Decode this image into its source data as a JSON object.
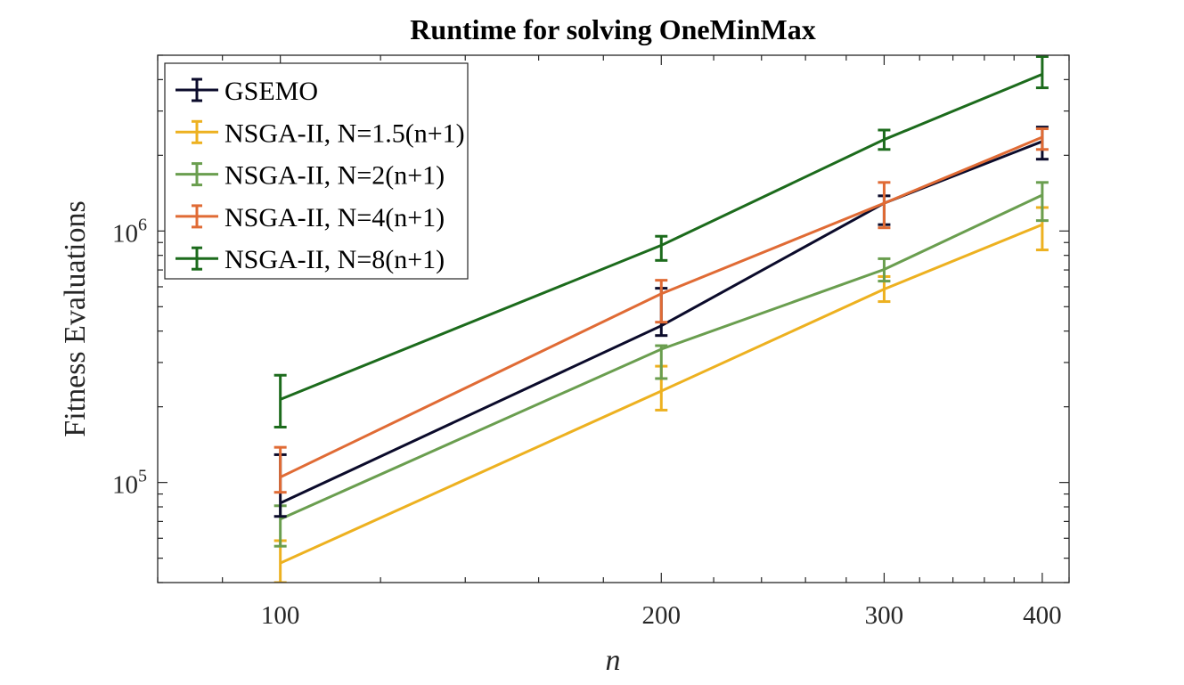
{
  "chart_data": {
    "type": "line",
    "title": "Runtime for solving OneMinMax",
    "xlabel": "n",
    "ylabel": "Fitness Evaluations",
    "xscale": "log",
    "yscale": "log",
    "xlim": [
      80,
      420
    ],
    "ylim": [
      40000,
      5000000
    ],
    "xticks": [
      100,
      200,
      300,
      400
    ],
    "xtick_labels": [
      "100",
      "200",
      "300",
      "400"
    ],
    "yticks": [
      100000,
      1000000
    ],
    "ytick_labels": [
      {
        "base": "10",
        "exp": "5"
      },
      {
        "base": "10",
        "exp": "6"
      }
    ],
    "grid": false,
    "legend_position": "top-left",
    "x": [
      100,
      200,
      300,
      400
    ],
    "series": [
      {
        "name": "GSEMO",
        "color": "#0b0b2b",
        "values": [
          82800,
          420000,
          1290000,
          2270000
        ],
        "err_low": [
          73300,
          384000,
          1060000,
          1930000
        ],
        "err_high": [
          129000,
          592000,
          1380000,
          2590000
        ]
      },
      {
        "name": "NSGA-II, N=1.5(n+1)",
        "color": "#edb120",
        "values": [
          47800,
          231000,
          587000,
          1060000
        ],
        "err_low": [
          40000,
          194000,
          524000,
          841000
        ],
        "err_high": [
          58700,
          290000,
          659000,
          1240000
        ]
      },
      {
        "name": "NSGA-II, N=2(n+1)",
        "color": "#6a9e4f",
        "values": [
          71500,
          339000,
          703000,
          1390000
        ],
        "err_low": [
          55800,
          259000,
          632000,
          1100000
        ],
        "err_high": [
          80800,
          350000,
          776000,
          1560000
        ]
      },
      {
        "name": "NSGA-II, N=4(n+1)",
        "color": "#e06b35",
        "values": [
          105000,
          563000,
          1290000,
          2360000
        ],
        "err_low": [
          91400,
          434000,
          1030000,
          2110000
        ],
        "err_high": [
          138000,
          637000,
          1560000,
          2550000
        ]
      },
      {
        "name": "NSGA-II, N=8(n+1)",
        "color": "#1c6b1c",
        "values": [
          214000,
          877000,
          2310000,
          4200000
        ],
        "err_low": [
          166000,
          764000,
          2110000,
          3710000
        ],
        "err_high": [
          267000,
          953000,
          2520000,
          4940000
        ]
      }
    ]
  }
}
